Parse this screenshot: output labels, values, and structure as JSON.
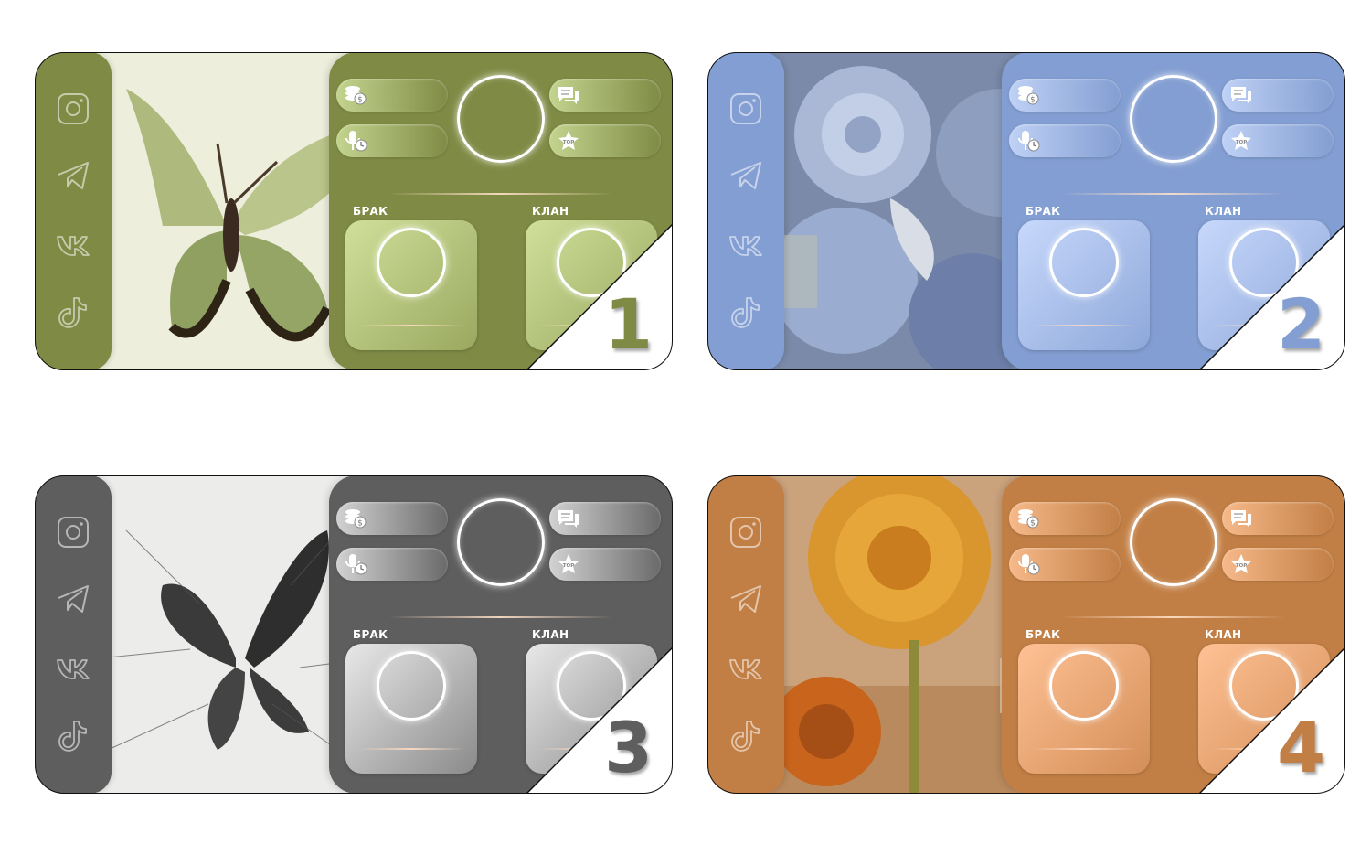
{
  "cards": [
    {
      "number": "1",
      "theme": {
        "main": "#7f8b45",
        "pill_from": "#c3d48e",
        "pill_to": "#7f8b45",
        "box_from": "#d0e09a",
        "box_to": "#9aa85f",
        "number_color": "#7f8b45"
      },
      "labels": {
        "marriage": "БРАК",
        "clan": "КЛАН"
      },
      "icons": {
        "sidebar": [
          "instagram-icon",
          "telegram-icon",
          "vk-icon",
          "tiktok-icon"
        ],
        "pills": [
          "coins-icon",
          "chat-icon",
          "mic-timer-icon",
          "top-star-icon"
        ]
      },
      "image": "green-butterfly"
    },
    {
      "number": "2",
      "theme": {
        "main": "#839ed2",
        "pill_from": "#bfd1f5",
        "pill_to": "#839ed2",
        "box_from": "#c7d8fb",
        "box_to": "#8ea8da",
        "number_color": "#839ed2"
      },
      "labels": {
        "marriage": "БРАК",
        "clan": "КЛАН"
      },
      "icons": {
        "sidebar": [
          "instagram-icon",
          "telegram-icon",
          "vk-icon",
          "tiktok-icon"
        ],
        "pills": [
          "coins-icon",
          "chat-icon",
          "mic-timer-icon",
          "top-star-icon"
        ]
      },
      "image": "blue-roses"
    },
    {
      "number": "3",
      "theme": {
        "main": "#5e5e5e",
        "pill_from": "#d2d2d2",
        "pill_to": "#6a6a6a",
        "box_from": "#e8e8e8",
        "box_to": "#8a8a8a",
        "number_color": "#5e5e5e"
      },
      "labels": {
        "marriage": "БРАК",
        "clan": "КЛАН"
      },
      "icons": {
        "sidebar": [
          "instagram-icon",
          "telegram-icon",
          "vk-icon",
          "tiktok-icon"
        ],
        "pills": [
          "coins-icon",
          "chat-icon",
          "mic-timer-icon",
          "top-star-icon"
        ]
      },
      "image": "grey-butterfly"
    },
    {
      "number": "4",
      "theme": {
        "main": "#c27f45",
        "pill_from": "#f6b98a",
        "pill_to": "#c27f45",
        "box_from": "#ffc194",
        "box_to": "#d38e58",
        "number_color": "#c27f45"
      },
      "labels": {
        "marriage": "БРАК",
        "clan": "КЛАН"
      },
      "icons": {
        "sidebar": [
          "instagram-icon",
          "telegram-icon",
          "vk-icon",
          "tiktok-icon"
        ],
        "pills": [
          "coins-icon",
          "chat-icon",
          "mic-timer-icon",
          "top-star-icon"
        ]
      },
      "image": "orange-flower"
    }
  ]
}
